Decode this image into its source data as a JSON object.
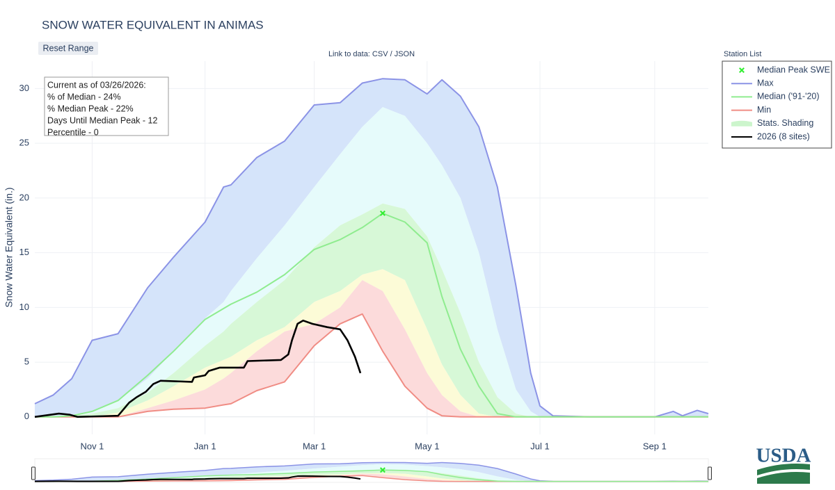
{
  "chart_data": {
    "type": "line",
    "title": "SNOW WATER EQUIVALENT IN ANIMAS",
    "reset_button": "Reset Range",
    "data_link": "Link to data: CSV / JSON",
    "station_list": "Station List",
    "y_label": "Snow Water Equivalent (in.)",
    "logo": "USDA",
    "info": [
      "Current as of 03/26/2026:",
      "% of Median - 24%",
      "% Median Peak - 22%",
      "Days Until Median Peak - 12",
      "Percentile - 0"
    ],
    "legend": "right",
    "grid": true,
    "xlim": [
      0,
      364
    ],
    "xticks": [
      {
        "value": 31,
        "label": "Nov 1"
      },
      {
        "value": 92,
        "label": "Jan 1"
      },
      {
        "value": 151,
        "label": "Mar 1"
      },
      {
        "value": 212,
        "label": "May 1"
      },
      {
        "value": 273,
        "label": "Jul 1"
      },
      {
        "value": 335,
        "label": "Sep 1"
      }
    ],
    "ylim": [
      -1.6,
      32.5
    ],
    "yticks": [
      0,
      5,
      10,
      15,
      20,
      25,
      30
    ],
    "x": [
      0,
      10,
      20,
      31,
      45,
      61,
      75,
      92,
      102,
      106,
      120,
      135,
      151,
      165,
      177,
      188,
      200,
      212,
      220,
      230,
      240,
      250,
      260,
      268,
      273,
      280,
      300,
      335,
      345,
      350,
      358,
      364
    ],
    "series": [
      {
        "name": "Median Peak SWE",
        "type": "marker",
        "color": "#33ee33",
        "x": [
          188
        ],
        "values": [
          18.6
        ]
      },
      {
        "name": "Max",
        "color": "#8b93e6",
        "values": [
          1.2,
          2.0,
          3.5,
          7.0,
          7.6,
          11.8,
          14.6,
          17.8,
          21,
          21.2,
          23.7,
          25.2,
          28.5,
          28.7,
          30.5,
          30.9,
          30.8,
          29.5,
          30.8,
          29.3,
          26.5,
          21,
          12,
          4,
          1,
          0.1,
          0,
          0,
          0.5,
          0.1,
          0.6,
          0.3
        ]
      },
      {
        "name": "Median ('91-'20)",
        "color": "#8fec8f",
        "values": [
          0,
          0,
          0.1,
          0.5,
          1.5,
          3.8,
          6,
          8.9,
          9.9,
          10.3,
          11.4,
          13,
          15.3,
          16.2,
          17.3,
          18.6,
          17.8,
          15.9,
          11,
          6.2,
          2.8,
          0.3,
          0,
          0,
          0,
          0,
          0,
          0,
          0,
          0,
          0,
          0
        ]
      },
      {
        "name": "Min",
        "color": "#f08c84",
        "values": [
          0,
          0,
          0,
          0,
          0,
          0.5,
          0.7,
          0.8,
          1.1,
          1.2,
          2.4,
          3.2,
          6.5,
          8.5,
          9.4,
          6,
          2.8,
          0.8,
          0.1,
          0,
          0,
          0,
          0,
          0,
          0,
          0,
          0,
          0,
          0,
          0,
          0,
          0
        ]
      },
      {
        "name": "Stats. Shading",
        "type": "bands",
        "color": "#ccf5cc",
        "colors": [
          "#d5e4fa",
          "#e6fbfb",
          "#d7f8d7",
          "#fcfbd7",
          "#fcdbdb"
        ],
        "boundaries": [
          [
            0,
            0.1,
            0.2,
            0.5,
            1.5,
            3.5,
            6,
            9,
            10.5,
            11.5,
            14.5,
            17.5,
            21,
            24,
            26.5,
            28.3,
            27.5,
            25,
            23,
            20,
            15,
            8,
            2.5,
            0.5,
            0,
            0,
            0,
            0,
            0,
            0,
            0,
            0
          ],
          [
            0,
            0,
            0.1,
            0.3,
            0.8,
            2.2,
            4,
            6.5,
            7.8,
            8.5,
            10.5,
            12.5,
            15.5,
            17.5,
            18.5,
            19.5,
            19,
            16.5,
            13.5,
            9.5,
            5,
            1.8,
            0.3,
            0,
            0,
            0,
            0,
            0,
            0,
            0,
            0,
            0
          ],
          [
            0,
            0,
            0,
            0,
            0.4,
            1.5,
            2.8,
            4.5,
            5.2,
            5.5,
            7,
            8.2,
            10.5,
            11.5,
            13,
            13.5,
            12.5,
            8,
            4.8,
            2,
            0.3,
            0,
            0,
            0,
            0,
            0,
            0,
            0,
            0,
            0,
            0,
            0
          ],
          [
            0,
            0,
            0,
            0,
            0,
            0.8,
            1.5,
            2.5,
            3.5,
            4,
            6,
            7.8,
            8.5,
            10,
            12.5,
            11.5,
            8,
            4,
            2,
            0.5,
            0,
            0,
            0,
            0,
            0,
            0,
            0,
            0,
            0,
            0,
            0,
            0
          ]
        ]
      },
      {
        "name": "2026 (8 sites)",
        "color": "#000000",
        "x": [
          0,
          13,
          19,
          23,
          45,
          47,
          51,
          55,
          60,
          64,
          68,
          85,
          86,
          92,
          94,
          100,
          113,
          115,
          133,
          137,
          139,
          142,
          145,
          150,
          158,
          165,
          169,
          173,
          176
        ],
        "values": [
          0,
          0.3,
          0.2,
          0,
          0.1,
          0.5,
          1.3,
          1.8,
          2.3,
          3.0,
          3.3,
          3.2,
          3.6,
          3.8,
          4.2,
          4.5,
          4.5,
          5.1,
          5.2,
          5.7,
          7,
          8.5,
          8.8,
          8.5,
          8.2,
          8.0,
          7,
          5.5,
          4.0
        ]
      }
    ]
  }
}
